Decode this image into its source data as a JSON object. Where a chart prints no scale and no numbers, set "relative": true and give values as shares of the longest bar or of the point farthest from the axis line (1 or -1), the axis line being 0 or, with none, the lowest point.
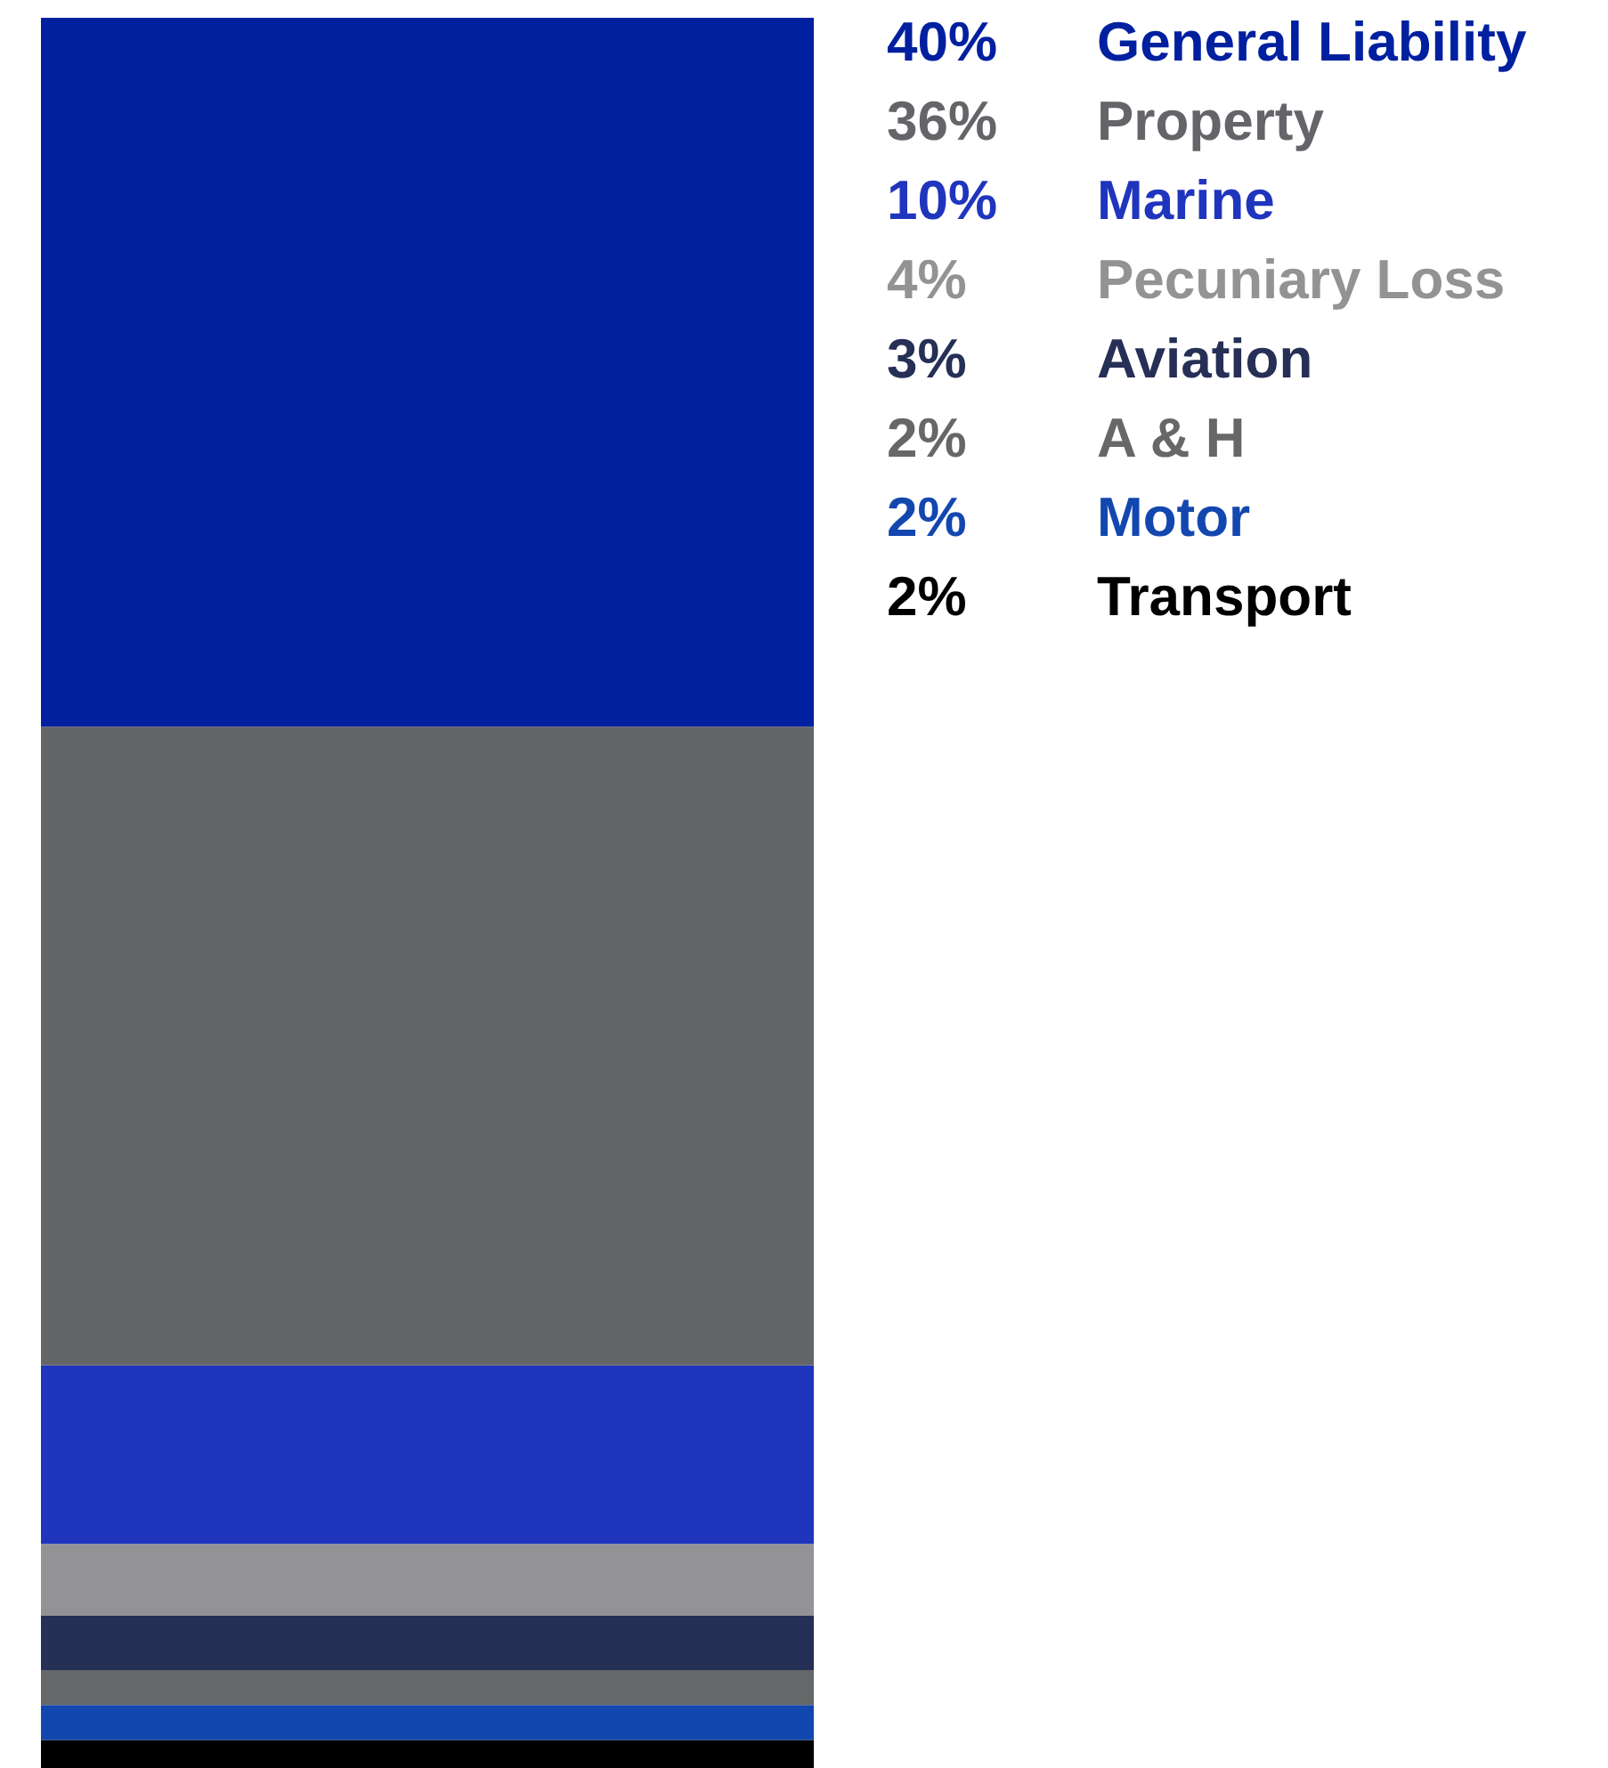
{
  "chart_data": {
    "type": "bar",
    "stacked": true,
    "relative": true,
    "categories": [
      null
    ],
    "legend": "right",
    "series": [
      {
        "name": "Transport",
        "color": "#000000",
        "values": [
          0.016
        ]
      },
      {
        "name": "Motor",
        "color": "#1347b0",
        "values": [
          0.02
        ]
      },
      {
        "name": "A & H",
        "color": "#666769",
        "values": [
          0.02
        ]
      },
      {
        "name": "Aviation",
        "color": "#262f55",
        "values": [
          0.031
        ]
      },
      {
        "name": "Pecuniary Loss",
        "color": "#939395",
        "values": [
          0.041
        ]
      },
      {
        "name": "Marine",
        "color": "#2035bd",
        "values": [
          0.102
        ]
      },
      {
        "name": "Property",
        "color": "#646569",
        "values": [
          0.365
        ]
      },
      {
        "name": "General Liability",
        "color": "#00209f",
        "values": [
          0.405
        ]
      }
    ],
    "annotations": [
      "40%",
      "36%",
      "10%",
      "4%",
      "3%",
      "2%",
      "2%",
      "2%"
    ]
  }
}
